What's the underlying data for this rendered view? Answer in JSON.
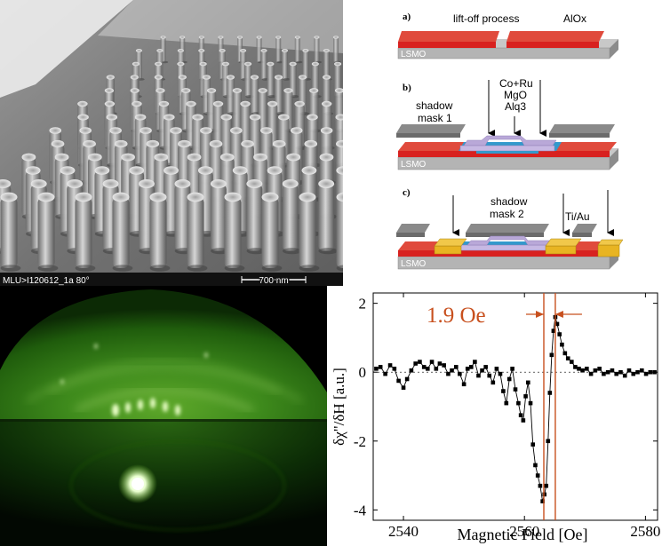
{
  "sem": {
    "caption": "MLU>I120612_1a 80°",
    "scalebar_label": "700 nm"
  },
  "schematic": {
    "steps": [
      {
        "letter": "a)",
        "labels": [
          "lift-off process",
          "AlOx"
        ],
        "substrate": "LSMO"
      },
      {
        "letter": "b)",
        "labels": [
          "shadow",
          "mask 1",
          "Co+Ru",
          "MgO",
          "Alq3"
        ],
        "substrate": "LSMO"
      },
      {
        "letter": "c)",
        "labels": [
          "shadow",
          "mask 2",
          "Ti/Au"
        ],
        "substrate": "LSMO"
      }
    ],
    "colors": {
      "red": "#d8211f",
      "grey_top": "#c8c8c8",
      "grey_side": "#8c8c8c",
      "mask": "#6b6b6b",
      "lavender": "#b9a8d8",
      "blue": "#3399cc",
      "gold": "#e8b422"
    }
  },
  "rheed": {
    "accent": "#86d63a"
  },
  "chart_data": {
    "type": "line",
    "title": "",
    "xlabel": "Magnetic Field [Oe]",
    "ylabel": "δχ\"/δH [a.u.]",
    "xlim": [
      2535,
      2582
    ],
    "ylim": [
      -4.3,
      2.3
    ],
    "xticks": [
      2540,
      2560,
      2580
    ],
    "xtick_labels": [
      "2540",
      "2560",
      "2580"
    ],
    "yticks": [
      -4,
      -2,
      0,
      2
    ],
    "ytick_labels": [
      "-4",
      "-2",
      "0",
      "2"
    ],
    "annotation": {
      "text": "1.9 Oe",
      "x1": 2563.2,
      "x2": 2565.1
    },
    "accent": "#c8501e",
    "series": [
      {
        "x": [
          2535.5,
          2536.2,
          2537,
          2537.8,
          2538.5,
          2539.2,
          2540,
          2540.6,
          2541.3,
          2542,
          2542.7,
          2543.4,
          2544,
          2544.7,
          2545.4,
          2546,
          2546.7,
          2547.4,
          2548,
          2548.7,
          2549.3,
          2550,
          2550.6,
          2551.2,
          2551.8,
          2552.4,
          2553,
          2553.6,
          2554.2,
          2554.8,
          2555.4,
          2556,
          2556.5,
          2557,
          2557.5,
          2558,
          2558.5,
          2559,
          2559.4,
          2559.8,
          2560.2,
          2560.6,
          2561,
          2561.4,
          2561.8,
          2562.2,
          2562.6,
          2563,
          2563.3,
          2563.6,
          2563.9,
          2564.2,
          2564.5,
          2564.8,
          2565.1,
          2565.4,
          2565.8,
          2566.2,
          2566.7,
          2567.2,
          2567.8,
          2568.4,
          2569,
          2569.6,
          2570.3,
          2571,
          2571.7,
          2572.4,
          2573.1,
          2573.8,
          2574.5,
          2575.2,
          2575.9,
          2576.6,
          2577.3,
          2578,
          2578.7,
          2579.4,
          2580.1,
          2580.8,
          2581.5
        ],
        "y": [
          0.1,
          0.15,
          -0.05,
          0.2,
          0.1,
          -0.25,
          -0.45,
          -0.2,
          0.05,
          0.25,
          0.3,
          0.15,
          0.1,
          0.3,
          0.1,
          0.25,
          0.2,
          -0.05,
          0.05,
          0.15,
          -0.05,
          -0.35,
          0.1,
          0.15,
          0.3,
          -0.1,
          0.05,
          0.15,
          -0.1,
          -0.3,
          0.1,
          -0.05,
          -0.55,
          -0.9,
          -0.2,
          0.1,
          -0.5,
          -0.9,
          -1.25,
          -1.4,
          -0.7,
          -0.3,
          -0.9,
          -2.1,
          -2.7,
          -3.0,
          -3.3,
          -3.75,
          -3.55,
          -3.3,
          -2.0,
          -0.6,
          0.5,
          1.2,
          1.6,
          1.4,
          1.1,
          0.8,
          0.55,
          0.4,
          0.3,
          0.15,
          0.1,
          0.05,
          0.1,
          -0.05,
          0.05,
          0.1,
          -0.05,
          0.0,
          0.05,
          -0.05,
          0.0,
          -0.1,
          0.05,
          -0.05,
          0.0,
          0.05,
          -0.05,
          0.0,
          0.0
        ]
      }
    ]
  }
}
